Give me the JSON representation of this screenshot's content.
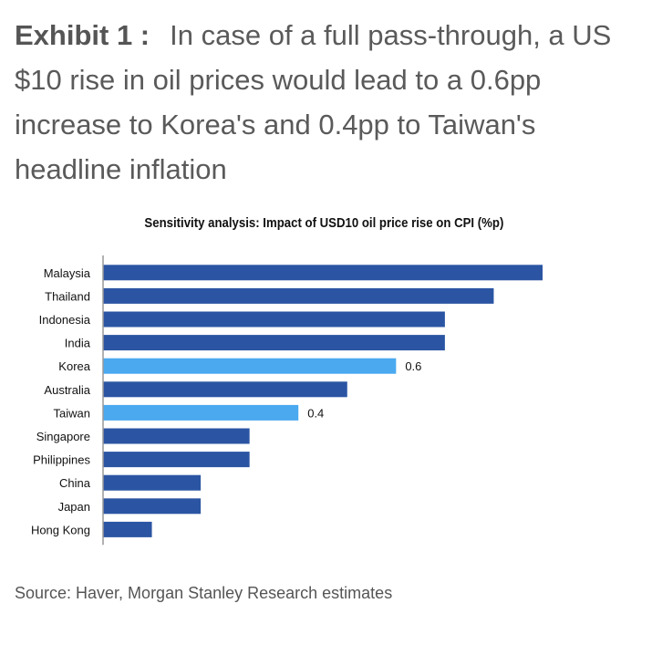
{
  "exhibit": {
    "label": "Exhibit 1 :",
    "headline": "In case of a full pass-through, a US $10 rise in oil prices would lead to a 0.6pp increase to Korea's and 0.4pp to Taiwan's headline inflation"
  },
  "source": "Source: Haver, Morgan Stanley Research estimates",
  "colors": {
    "default_bar": "#2b55a3",
    "highlight_bar": "#4aa9ef",
    "axis": "#999999",
    "label": "#111111"
  },
  "chart_data": {
    "type": "bar",
    "orientation": "horizontal",
    "title": "Sensitivity analysis: Impact of USD10 oil price rise on CPI (%p)",
    "xlabel": "",
    "ylabel": "",
    "xlim": [
      0,
      0.9
    ],
    "grid": false,
    "legend": "none",
    "categories": [
      "Malaysia",
      "Thailand",
      "Indonesia",
      "India",
      "Korea",
      "Australia",
      "Taiwan",
      "Singapore",
      "Philippines",
      "China",
      "Japan",
      "Hong Kong"
    ],
    "values": [
      0.9,
      0.8,
      0.7,
      0.7,
      0.6,
      0.5,
      0.4,
      0.3,
      0.3,
      0.2,
      0.2,
      0.1
    ],
    "highlighted": [
      "Korea",
      "Taiwan"
    ],
    "data_labels": {
      "Korea": "0.6",
      "Taiwan": "0.4"
    }
  }
}
